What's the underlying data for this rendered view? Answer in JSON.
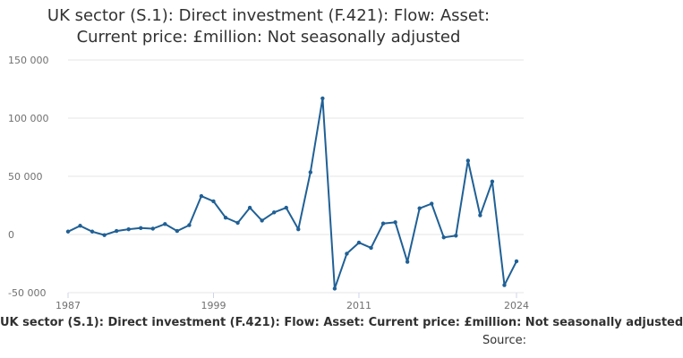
{
  "chart_data": {
    "type": "line",
    "title_lines": [
      "UK sector (S.1): Direct investment (F.421): Flow: Asset:",
      "Current price: £million: Not seasonally adjusted"
    ],
    "xlabel": "UK sector (S.1): Direct investment (F.421): Flow: Asset: Current price: £million: Not seasonally adjusted",
    "ylabel": "",
    "source_label": "Source:",
    "x_tick_labels": [
      "1987",
      "1999",
      "2011",
      "2024"
    ],
    "y_tick_labels": [
      "150 000",
      "100 000",
      "50 000",
      "0",
      "-50 000"
    ],
    "y_ticks": [
      150000,
      100000,
      50000,
      0,
      -50000
    ],
    "x_ticks": [
      1987,
      1999,
      2011,
      2024
    ],
    "xlim": [
      1987,
      2024
    ],
    "ylim": [
      -50000,
      150000
    ],
    "grid": true,
    "line_color": "#206095",
    "series": [
      {
        "values": [
          {
            "x": 1987,
            "y": 2500
          },
          {
            "x": 1988,
            "y": 7500
          },
          {
            "x": 1989,
            "y": 2500
          },
          {
            "x": 1990,
            "y": -500
          },
          {
            "x": 1991,
            "y": 3000
          },
          {
            "x": 1992,
            "y": 4500
          },
          {
            "x": 1993,
            "y": 5500
          },
          {
            "x": 1994,
            "y": 5000
          },
          {
            "x": 1995,
            "y": 9000
          },
          {
            "x": 1996,
            "y": 3000
          },
          {
            "x": 1997,
            "y": 8000
          },
          {
            "x": 1998,
            "y": 33000
          },
          {
            "x": 1999,
            "y": 28500
          },
          {
            "x": 2000,
            "y": 14500
          },
          {
            "x": 2001,
            "y": 10000
          },
          {
            "x": 2002,
            "y": 23000
          },
          {
            "x": 2003,
            "y": 12000
          },
          {
            "x": 2004,
            "y": 19000
          },
          {
            "x": 2005,
            "y": 23000
          },
          {
            "x": 2006,
            "y": 4500
          },
          {
            "x": 2007,
            "y": 53500
          },
          {
            "x": 2008,
            "y": 117000
          },
          {
            "x": 2009,
            "y": -46500
          },
          {
            "x": 2010,
            "y": -16500
          },
          {
            "x": 2011,
            "y": -7000
          },
          {
            "x": 2012,
            "y": -11500
          },
          {
            "x": 2013,
            "y": 9500
          },
          {
            "x": 2014,
            "y": 10500
          },
          {
            "x": 2015,
            "y": -23500
          },
          {
            "x": 2016,
            "y": 22500
          },
          {
            "x": 2017,
            "y": 26500
          },
          {
            "x": 2018,
            "y": -2500
          },
          {
            "x": 2019,
            "y": -1000
          },
          {
            "x": 2020,
            "y": 63500
          },
          {
            "x": 2021,
            "y": 16500
          },
          {
            "x": 2022,
            "y": 45500
          },
          {
            "x": 2023,
            "y": -43500
          },
          {
            "x": 2024,
            "y": -23000
          }
        ]
      }
    ]
  }
}
